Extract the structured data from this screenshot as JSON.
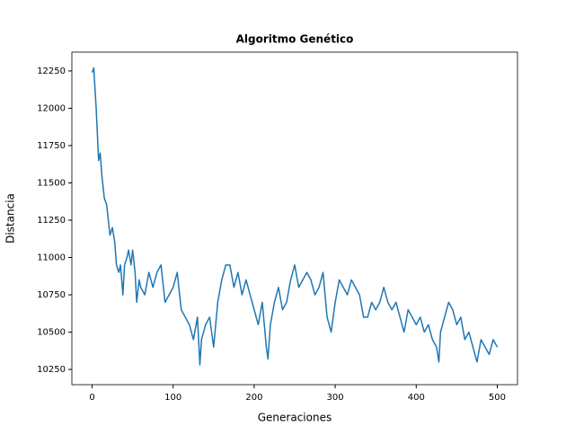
{
  "chart_data": {
    "type": "line",
    "title": "Algoritmo Genético",
    "x_label": "Generaciones",
    "y_label": "Distancia",
    "x": [
      0,
      2,
      5,
      8,
      10,
      12,
      15,
      18,
      20,
      22,
      25,
      28,
      30,
      33,
      35,
      38,
      40,
      43,
      45,
      48,
      50,
      53,
      55,
      58,
      60,
      65,
      70,
      75,
      80,
      85,
      90,
      95,
      100,
      105,
      110,
      115,
      120,
      125,
      130,
      133,
      135,
      140,
      145,
      150,
      155,
      160,
      165,
      170,
      175,
      180,
      185,
      190,
      195,
      200,
      205,
      210,
      215,
      217,
      220,
      225,
      230,
      235,
      240,
      245,
      250,
      255,
      260,
      265,
      270,
      275,
      280,
      285,
      290,
      295,
      300,
      305,
      310,
      315,
      320,
      325,
      330,
      335,
      340,
      345,
      350,
      355,
      360,
      365,
      370,
      375,
      380,
      385,
      390,
      395,
      400,
      405,
      410,
      415,
      420,
      425,
      428,
      430,
      435,
      440,
      445,
      450,
      455,
      460,
      465,
      470,
      475,
      480,
      485,
      490,
      495,
      500
    ],
    "series": [
      {
        "name": "Distancia",
        "color": "#1f77b4",
        "values": [
          12240,
          12270,
          12000,
          11650,
          11700,
          11550,
          11400,
          11350,
          11250,
          11150,
          11200,
          11100,
          10950,
          10900,
          10950,
          10750,
          10950,
          11000,
          11050,
          10950,
          11050,
          10900,
          10700,
          10850,
          10800,
          10750,
          10900,
          10800,
          10900,
          10950,
          10700,
          10750,
          10800,
          10900,
          10650,
          10600,
          10550,
          10450,
          10600,
          10280,
          10450,
          10550,
          10600,
          10400,
          10700,
          10850,
          10950,
          10950,
          10800,
          10900,
          10750,
          10850,
          10750,
          10650,
          10550,
          10700,
          10400,
          10320,
          10550,
          10700,
          10800,
          10650,
          10700,
          10850,
          10950,
          10800,
          10850,
          10900,
          10850,
          10750,
          10800,
          10900,
          10600,
          10500,
          10700,
          10850,
          10800,
          10750,
          10850,
          10800,
          10750,
          10600,
          10600,
          10700,
          10650,
          10700,
          10800,
          10700,
          10650,
          10700,
          10600,
          10500,
          10650,
          10600,
          10550,
          10600,
          10500,
          10550,
          10450,
          10400,
          10300,
          10500,
          10600,
          10700,
          10650,
          10550,
          10600,
          10450,
          10500,
          10400,
          10300,
          10450,
          10400,
          10350,
          10450,
          10400
        ]
      }
    ],
    "xlim": [
      -25,
      525
    ],
    "ylim": [
      10148,
      12376
    ],
    "xticks": [
      0,
      100,
      200,
      300,
      400,
      500
    ],
    "yticks": [
      10250,
      10500,
      10750,
      11000,
      11250,
      11500,
      11750,
      12000,
      12250
    ]
  }
}
